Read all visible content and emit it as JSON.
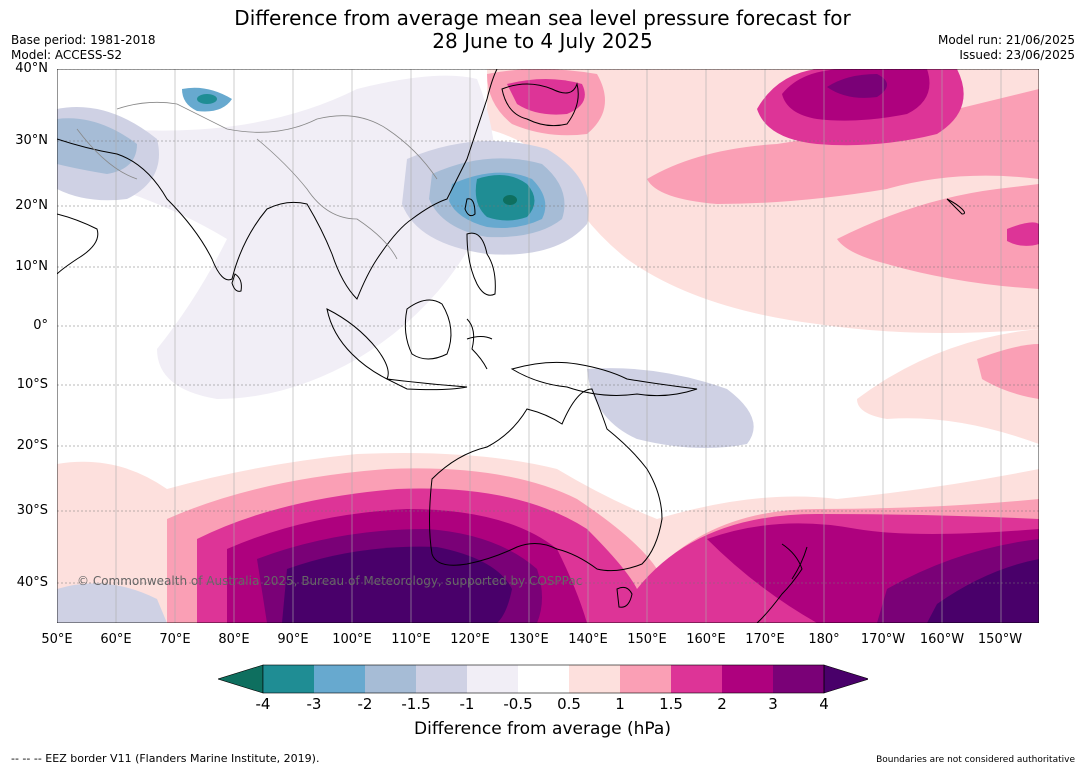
{
  "title_line1": "Difference from average mean sea level pressure forecast for",
  "title_line2": "28 June to 4 July 2025",
  "meta_left": {
    "base_period": "Base period: 1981-2018",
    "model": "Model: ACCESS-S2"
  },
  "meta_right": {
    "model_run": "Model run: 21/06/2025",
    "issued": "Issued: 23/06/2025"
  },
  "latitude_labels": [
    "40°N",
    "30°N",
    "20°N",
    "10°N",
    "0°",
    "10°S",
    "20°S",
    "30°S",
    "40°S"
  ],
  "longitude_labels": [
    "50°E",
    "60°E",
    "70°E",
    "80°E",
    "90°E",
    "100°E",
    "110°E",
    "120°E",
    "130°E",
    "140°E",
    "150°E",
    "160°E",
    "170°E",
    "180°",
    "170°W",
    "160°W",
    "150°W"
  ],
  "copyright": "© Commonwealth of Australia 2025, Bureau of Meteorology, supported by COSPPac",
  "colorbar": {
    "ticks": [
      "-4",
      "-3",
      "-2",
      "-1.5",
      "-1",
      "-0.5",
      "0.5",
      "1",
      "1.5",
      "2",
      "3",
      "4"
    ],
    "colors": [
      "#0e6f5f",
      "#1f8d94",
      "#67a9cf",
      "#a6bcd6",
      "#cfd1e4",
      "#f1eef6",
      "#ffffff",
      "#fde0dd",
      "#fa9fb5",
      "#dd3497",
      "#ae017e",
      "#7a0177",
      "#49006a"
    ],
    "label": "Difference from average (hPa)"
  },
  "footer_left": "--  --  -- EEZ border V11 (Flanders Marine Institute, 2019).",
  "footer_right": "Boundaries are not considered authoritative"
}
